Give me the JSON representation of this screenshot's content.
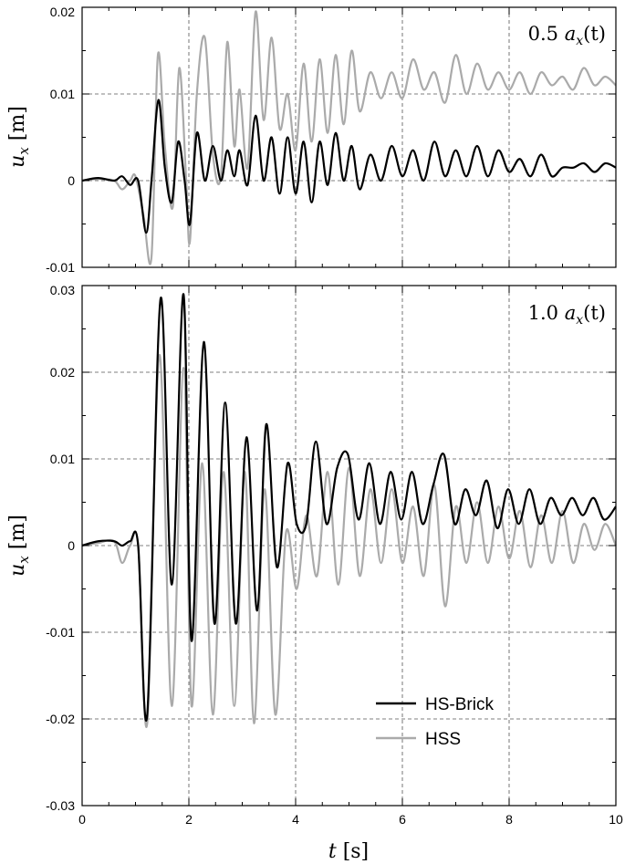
{
  "chart_data": [
    {
      "type": "line",
      "annotation": {
        "coef": "0.5",
        "var": "a",
        "sub": "x",
        "arg": "(t)"
      },
      "xlabel": {
        "var": "t",
        "unit": "[s]"
      },
      "ylabel": {
        "var": "u",
        "sub": "x",
        "unit": "[m]"
      },
      "xlim": [
        0,
        10
      ],
      "ylim": [
        -0.01,
        0.02
      ],
      "xticks": [
        0,
        2,
        4,
        6,
        8,
        10
      ],
      "xtick_labels": [
        "0",
        "2",
        "4",
        "6",
        "8",
        "10"
      ],
      "yticks": [
        -0.01,
        0,
        0.01,
        0.02
      ],
      "ytick_labels": [
        "-0.01",
        "0",
        "0.01",
        "0.02"
      ],
      "grid": true,
      "series": [
        {
          "name": "HSS",
          "color": "#aaaaaa",
          "x": [
            0,
            0.3,
            0.6,
            0.75,
            0.9,
            1.0,
            1.15,
            1.3,
            1.42,
            1.55,
            1.7,
            1.82,
            1.95,
            2.02,
            2.15,
            2.3,
            2.45,
            2.6,
            2.72,
            2.85,
            2.95,
            3.1,
            3.25,
            3.4,
            3.55,
            3.7,
            3.85,
            4.0,
            4.15,
            4.3,
            4.45,
            4.6,
            4.75,
            4.9,
            5.05,
            5.2,
            5.4,
            5.6,
            5.8,
            6.0,
            6.2,
            6.4,
            6.6,
            6.8,
            7.0,
            7.2,
            7.4,
            7.6,
            7.8,
            8.0,
            8.2,
            8.4,
            8.6,
            8.8,
            9.0,
            9.2,
            9.4,
            9.6,
            9.8,
            10.0
          ],
          "y": [
            0.0,
            0.0002,
            0.0,
            -0.001,
            0.0,
            0.0005,
            -0.004,
            -0.0088,
            0.0145,
            0.004,
            -0.003,
            0.013,
            0.0,
            -0.007,
            0.01,
            0.0165,
            0.003,
            0.0005,
            0.016,
            0.004,
            0.0105,
            0.0015,
            0.0195,
            0.007,
            0.0165,
            0.006,
            0.01,
            0.0035,
            0.0135,
            0.0045,
            0.014,
            0.0055,
            0.0145,
            0.0065,
            0.015,
            0.008,
            0.0125,
            0.0095,
            0.0125,
            0.0095,
            0.014,
            0.0105,
            0.0125,
            0.009,
            0.0145,
            0.01,
            0.0135,
            0.0105,
            0.0125,
            0.0105,
            0.0125,
            0.01,
            0.0125,
            0.011,
            0.012,
            0.0105,
            0.013,
            0.011,
            0.012,
            0.011
          ]
        },
        {
          "name": "HS-Brick",
          "color": "#000000",
          "x": [
            0,
            0.3,
            0.6,
            0.75,
            0.9,
            1.05,
            1.2,
            1.3,
            1.43,
            1.55,
            1.68,
            1.8,
            1.92,
            2.02,
            2.15,
            2.3,
            2.45,
            2.6,
            2.72,
            2.85,
            2.95,
            3.1,
            3.25,
            3.4,
            3.55,
            3.7,
            3.85,
            4.0,
            4.15,
            4.3,
            4.45,
            4.6,
            4.75,
            4.9,
            5.05,
            5.2,
            5.4,
            5.6,
            5.8,
            6.0,
            6.2,
            6.4,
            6.6,
            6.8,
            7.0,
            7.2,
            7.4,
            7.6,
            7.8,
            8.0,
            8.2,
            8.4,
            8.6,
            8.8,
            9.0,
            9.2,
            9.4,
            9.6,
            9.8,
            10.0
          ],
          "y": [
            0.0,
            0.0003,
            0.0,
            0.0005,
            -0.0005,
            0.0,
            -0.006,
            0.0,
            0.0093,
            0.0015,
            -0.0025,
            0.0045,
            0.0,
            -0.005,
            0.0055,
            0.0,
            0.004,
            0.0,
            0.0035,
            0.0005,
            0.0035,
            -0.0005,
            0.0075,
            0.0,
            0.005,
            -0.0015,
            0.005,
            -0.0015,
            0.0045,
            -0.0025,
            0.0045,
            -0.0005,
            0.0055,
            0.0,
            0.004,
            -0.001,
            0.003,
            0.0,
            0.004,
            0.0005,
            0.0035,
            0.0,
            0.0045,
            0.0005,
            0.0035,
            0.0005,
            0.004,
            0.0005,
            0.0035,
            0.001,
            0.0025,
            0.0005,
            0.003,
            0.0005,
            0.0015,
            0.0015,
            0.002,
            0.001,
            0.002,
            0.0015
          ]
        }
      ]
    },
    {
      "type": "line",
      "annotation": {
        "coef": "1.0",
        "var": "a",
        "sub": "x",
        "arg": "(t)"
      },
      "xlim": [
        0,
        10
      ],
      "ylim": [
        -0.03,
        0.03
      ],
      "xticks": [
        0,
        2,
        4,
        6,
        8,
        10
      ],
      "xtick_labels": [
        "0",
        "2",
        "4",
        "6",
        "8",
        "10"
      ],
      "yticks": [
        -0.03,
        -0.02,
        -0.01,
        0,
        0.01,
        0.02,
        0.03
      ],
      "ytick_labels": [
        "-0.03",
        "-0.02",
        "-0.01",
        "0",
        "0.01",
        "0.02",
        "0.03"
      ],
      "grid": true,
      "legend": {
        "position": "bottom-right",
        "entries": [
          "HS-Brick",
          "HSS"
        ]
      },
      "series": [
        {
          "name": "HSS",
          "color": "#aaaaaa",
          "x": [
            0,
            0.3,
            0.6,
            0.75,
            0.9,
            1.05,
            1.22,
            1.45,
            1.68,
            1.9,
            2.05,
            2.25,
            2.45,
            2.65,
            2.85,
            3.05,
            3.22,
            3.42,
            3.62,
            3.82,
            4.02,
            4.2,
            4.4,
            4.6,
            4.8,
            5.0,
            5.2,
            5.4,
            5.6,
            5.8,
            6.0,
            6.2,
            6.4,
            6.6,
            6.8,
            7.0,
            7.2,
            7.4,
            7.6,
            7.8,
            8.0,
            8.2,
            8.4,
            8.6,
            8.8,
            9.0,
            9.2,
            9.4,
            9.6,
            9.8,
            10.0
          ],
          "y": [
            0.0,
            0.0003,
            0.0005,
            -0.002,
            0.0,
            0.0,
            -0.0205,
            0.022,
            -0.0185,
            0.0205,
            -0.0185,
            0.0095,
            -0.0195,
            0.0085,
            -0.0185,
            0.0085,
            -0.0205,
            0.0065,
            -0.0195,
            0.0015,
            -0.005,
            0.0035,
            -0.0035,
            0.0085,
            -0.0045,
            0.009,
            -0.0035,
            0.0065,
            -0.002,
            0.0065,
            -0.002,
            0.0045,
            -0.0035,
            0.007,
            -0.007,
            0.0045,
            -0.002,
            0.005,
            -0.002,
            0.0045,
            -0.0015,
            0.004,
            -0.0025,
            0.0035,
            -0.002,
            0.004,
            -0.002,
            0.0025,
            -0.0005,
            0.0025,
            0.0
          ]
        },
        {
          "name": "HS-Brick",
          "color": "#000000",
          "x": [
            0,
            0.3,
            0.6,
            0.75,
            0.9,
            1.05,
            1.22,
            1.47,
            1.68,
            1.9,
            2.05,
            2.28,
            2.48,
            2.68,
            2.88,
            3.08,
            3.28,
            3.45,
            3.65,
            3.85,
            4.02,
            4.2,
            4.38,
            4.58,
            4.78,
            4.98,
            5.18,
            5.38,
            5.58,
            5.78,
            5.98,
            6.18,
            6.38,
            6.58,
            6.78,
            6.98,
            7.18,
            7.38,
            7.58,
            7.78,
            7.98,
            8.18,
            8.38,
            8.58,
            8.78,
            8.98,
            9.18,
            9.38,
            9.58,
            9.78,
            10.0
          ],
          "y": [
            0.0,
            0.0005,
            0.0005,
            0.0,
            0.0005,
            0.0,
            -0.0195,
            0.0285,
            -0.0045,
            0.029,
            -0.011,
            0.0235,
            -0.009,
            0.0165,
            -0.009,
            0.0125,
            -0.0075,
            0.014,
            -0.0025,
            0.0095,
            0.0025,
            0.0025,
            0.012,
            0.0025,
            0.009,
            0.0105,
            0.003,
            0.0095,
            0.0025,
            0.0085,
            0.003,
            0.0085,
            0.0025,
            0.007,
            0.0105,
            0.0025,
            0.0065,
            0.0035,
            0.0075,
            0.002,
            0.0065,
            0.0025,
            0.0065,
            0.0025,
            0.0055,
            0.0035,
            0.0055,
            0.0035,
            0.0055,
            0.003,
            0.0045
          ]
        }
      ]
    }
  ]
}
